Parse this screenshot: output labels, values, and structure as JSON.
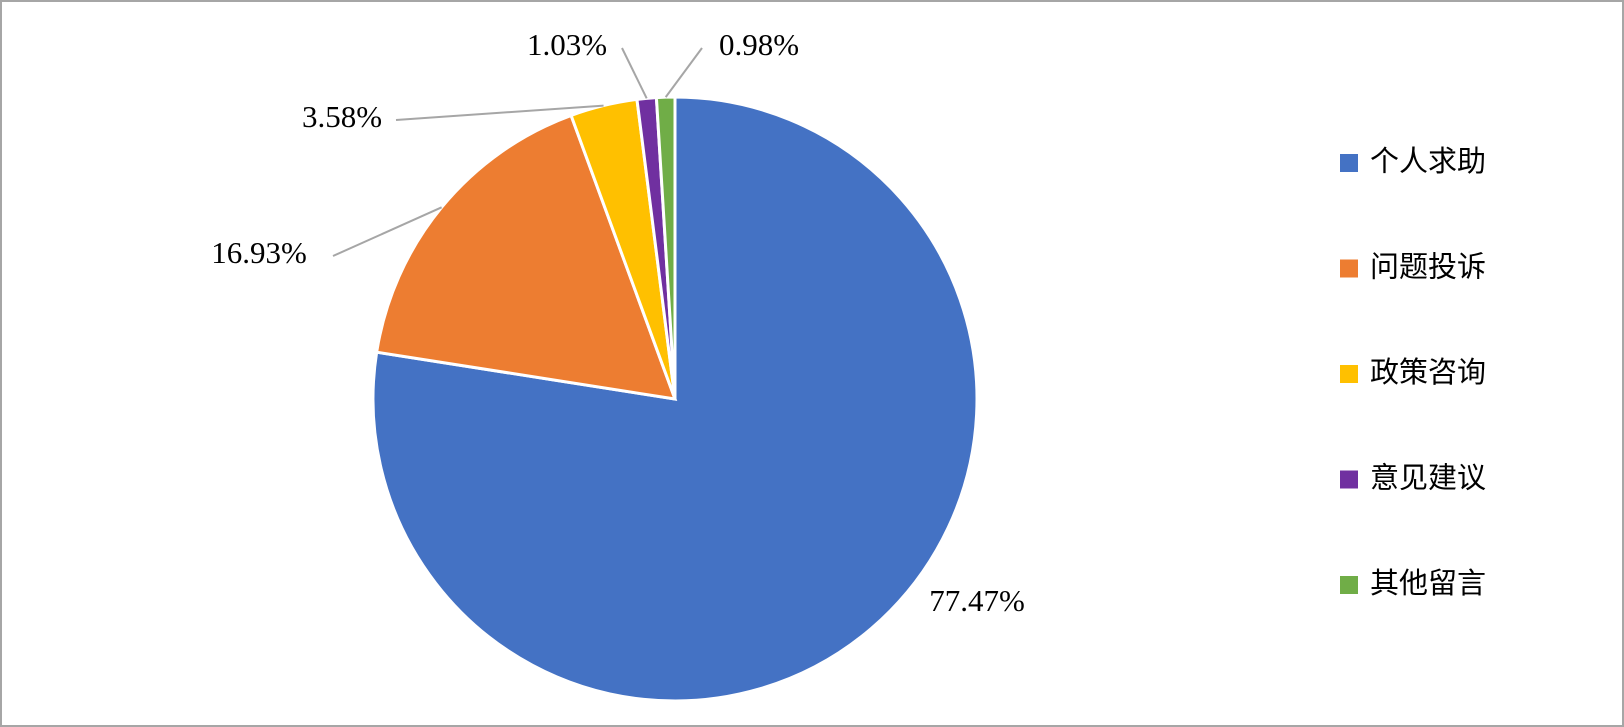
{
  "chart_data": {
    "type": "pie",
    "categories": [
      "个人求助",
      "问题投诉",
      "政策咨询",
      "意见建议",
      "其他留言"
    ],
    "values": [
      77.47,
      16.93,
      3.58,
      1.03,
      0.98
    ],
    "value_labels": [
      "77.47%",
      "16.93%",
      "3.58%",
      "1.03%",
      "0.98%"
    ],
    "colors": [
      "#4472c4",
      "#ed7d31",
      "#ffc000",
      "#7030a0",
      "#70ad47"
    ],
    "legend": "right"
  }
}
